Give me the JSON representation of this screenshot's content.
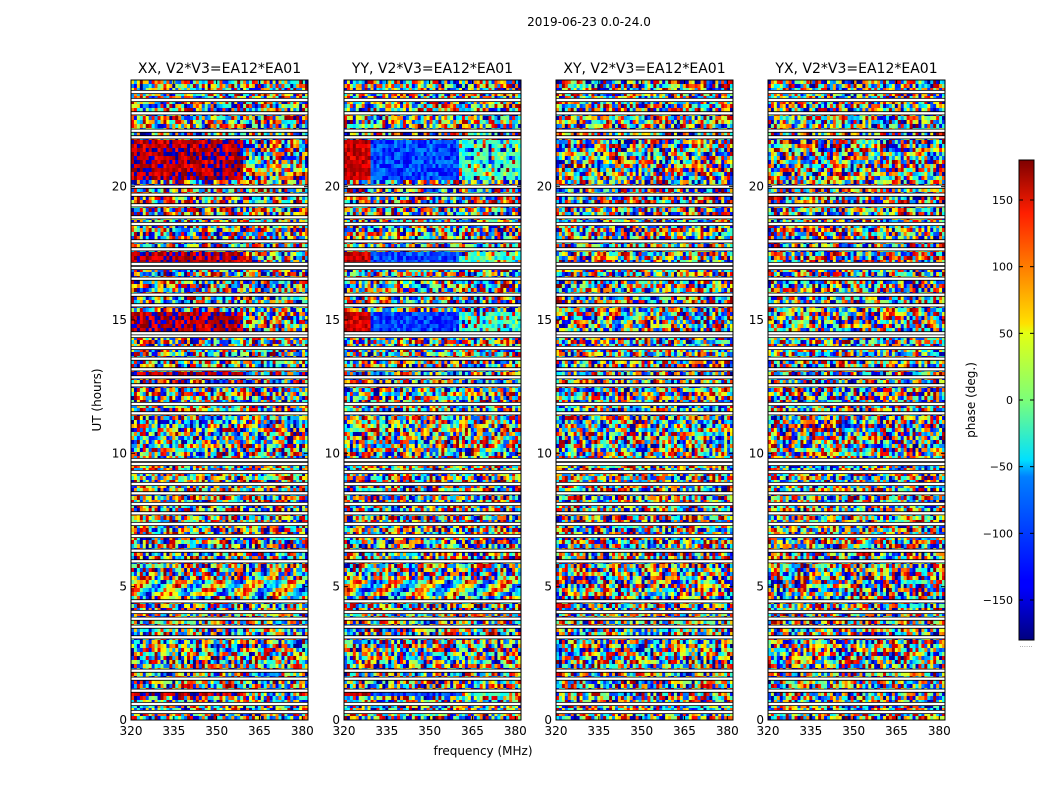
{
  "figure": {
    "suptitle": "2019-06-23 0.0-24.0"
  },
  "chart_data": {
    "type": "heatmap",
    "panels": [
      {
        "title": "XX, V2*V3=EA12*EA01",
        "coherent_rows": [
          [
            0.85,
            1.05,
            "red"
          ],
          [
            4.6,
            5.2,
            "band"
          ],
          [
            14.6,
            15.3,
            "red"
          ],
          [
            17.1,
            17.6,
            "red"
          ],
          [
            20.2,
            21.8,
            "red"
          ],
          [
            12.9,
            13.1,
            "red"
          ]
        ]
      },
      {
        "title": "YY, V2*V3=EA12*EA01",
        "coherent_rows": [
          [
            0.85,
            1.05,
            "gradient"
          ],
          [
            4.6,
            5.2,
            "band"
          ],
          [
            14.6,
            15.3,
            "gradient"
          ],
          [
            17.1,
            17.6,
            "gradient"
          ],
          [
            20.2,
            21.8,
            "gradient"
          ]
        ]
      },
      {
        "title": "XY, V2*V3=EA12*EA01",
        "coherent_rows": []
      },
      {
        "title": "YX, V2*V3=EA12*EA01",
        "coherent_rows": []
      }
    ],
    "xlabel": "frequency (MHz)",
    "ylabel": "UT (hours)",
    "x_range": [
      320,
      382
    ],
    "y_range": [
      0,
      24
    ],
    "x_ticks": [
      "320",
      "335",
      "350",
      "365",
      "380"
    ],
    "x_tick_values": [
      320,
      335,
      350,
      365,
      380
    ],
    "y_ticks": [
      "0",
      "5",
      "10",
      "15",
      "20"
    ],
    "y_tick_values": [
      0,
      5,
      10,
      15,
      20
    ],
    "colorbar": {
      "label": "phase (deg.)",
      "range": [
        -180,
        180
      ],
      "ticks": [
        "150",
        "100",
        "50",
        "0",
        "−50",
        "−100",
        "−150"
      ],
      "tick_values": [
        150,
        100,
        50,
        0,
        -50,
        -100,
        -150
      ],
      "colormap": "jet",
      "footer": "......"
    },
    "blank_rows_hours": [
      0.3,
      0.6,
      1.1,
      1.55,
      1.85,
      3.1,
      3.5,
      3.8,
      4.05,
      4.45,
      5.95,
      6.35,
      6.9,
      7.35,
      7.75,
      8.1,
      8.5,
      8.85,
      9.3,
      9.6,
      9.75,
      11.5,
      11.85,
      12.55,
      12.85,
      13.15,
      13.55,
      13.95,
      14.4,
      14.5,
      15.55,
      15.95,
      16.55,
      16.95,
      17.1,
      17.65,
      17.95,
      18.6,
      18.85,
      19.3,
      19.7,
      20.0,
      21.85,
      22.1,
      22.75,
      23.25,
      23.55
    ]
  }
}
